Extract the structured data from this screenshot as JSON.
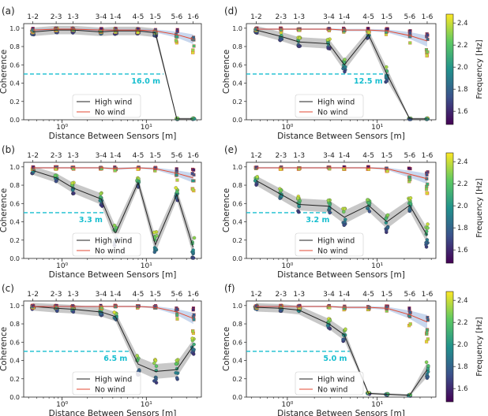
{
  "figure": {
    "xlabel": "Distance Between Sensors [m]",
    "ylabel": "Coherence",
    "colorbar_label": "Frequency [Hz]",
    "colorbar_ticks": [
      "2.4",
      "2.2",
      "2.0",
      "1.8",
      "1.6"
    ],
    "colormap": [
      "#440154",
      "#3b528b",
      "#21918c",
      "#5ec962",
      "#fde725"
    ],
    "high_wind_color": "#555555",
    "no_wind_color": "#e34a33",
    "threshold_color": "#17becf",
    "legend": [
      "High wind",
      "No wind"
    ],
    "x_tick_labels": [
      "10⁰",
      "10¹"
    ],
    "x_ticks": [
      1,
      10
    ],
    "y_ticks": [
      0.0,
      0.2,
      0.4,
      0.6,
      0.8,
      1.0
    ],
    "y_tick_labels": [
      "0.0",
      "0.2",
      "0.4",
      "0.6",
      "0.8",
      "1.0"
    ],
    "threshold_y": 0.5,
    "pair_labels": [
      "1-2",
      "2-3",
      "1-3",
      "3-4",
      "1-4",
      "4-5",
      "1-5",
      "5-6",
      "1-6"
    ],
    "pair_distances": [
      0.45,
      0.85,
      1.35,
      2.9,
      4.3,
      8.0,
      12.8,
      23.0,
      36.0
    ]
  },
  "chart_data": [
    {
      "type": "line",
      "panel": "(a)",
      "ylim": [
        0,
        1.05
      ],
      "xlim": [
        0.35,
        45
      ],
      "threshold_label": "16.0 m",
      "series": [
        {
          "name": "High wind",
          "values": [
            0.96,
            0.98,
            0.98,
            0.96,
            0.97,
            0.97,
            0.95,
            0.01,
            0.01
          ]
        },
        {
          "name": "No wind",
          "values": [
            0.98,
            0.99,
            0.99,
            0.98,
            0.98,
            0.98,
            0.97,
            0.93,
            0.88
          ]
        }
      ]
    },
    {
      "type": "line",
      "panel": "(b)",
      "ylim": [
        0,
        1.05
      ],
      "xlim": [
        0.35,
        45
      ],
      "threshold_label": "3.3 m",
      "series": [
        {
          "name": "High wind",
          "values": [
            0.96,
            0.88,
            0.77,
            0.65,
            0.27,
            0.83,
            0.15,
            0.7,
            0.12
          ]
        },
        {
          "name": "No wind",
          "values": [
            0.99,
            0.99,
            0.99,
            0.99,
            0.98,
            0.99,
            0.98,
            0.93,
            0.88
          ]
        }
      ]
    },
    {
      "type": "line",
      "panel": "(c)",
      "ylim": [
        0,
        1.05
      ],
      "xlim": [
        0.35,
        45
      ],
      "threshold_label": "6.5 m",
      "series": [
        {
          "name": "High wind",
          "values": [
            0.99,
            0.97,
            0.96,
            0.93,
            0.88,
            0.36,
            0.28,
            0.3,
            0.56
          ]
        },
        {
          "name": "No wind",
          "values": [
            0.99,
            0.99,
            0.99,
            0.99,
            0.99,
            0.99,
            0.98,
            0.93,
            0.86
          ]
        }
      ]
    },
    {
      "type": "line",
      "panel": "(d)",
      "ylim": [
        0,
        1.05
      ],
      "xlim": [
        0.35,
        45
      ],
      "threshold_label": "12.5 m",
      "series": [
        {
          "name": "High wind",
          "values": [
            0.98,
            0.91,
            0.85,
            0.83,
            0.6,
            0.93,
            0.5,
            0.01,
            0.01
          ]
        },
        {
          "name": "No wind",
          "values": [
            0.99,
            0.99,
            0.99,
            0.99,
            0.98,
            0.98,
            0.97,
            0.92,
            0.86
          ]
        }
      ]
    },
    {
      "type": "line",
      "panel": "(e)",
      "ylim": [
        0,
        1.05
      ],
      "xlim": [
        0.35,
        45
      ],
      "threshold_label": "3.2 m",
      "series": [
        {
          "name": "High wind",
          "values": [
            0.85,
            0.7,
            0.59,
            0.57,
            0.45,
            0.58,
            0.4,
            0.58,
            0.25
          ]
        },
        {
          "name": "No wind",
          "values": [
            0.99,
            0.99,
            0.99,
            0.99,
            0.99,
            0.99,
            0.98,
            0.92,
            0.87
          ]
        }
      ]
    },
    {
      "type": "line",
      "panel": "(f)",
      "ylim": [
        0,
        1.05
      ],
      "xlim": [
        0.35,
        45
      ],
      "threshold_label": "5.0 m",
      "series": [
        {
          "name": "High wind",
          "values": [
            0.98,
            0.97,
            0.95,
            0.8,
            0.68,
            0.04,
            0.03,
            0.02,
            0.3
          ]
        },
        {
          "name": "No wind",
          "values": [
            0.99,
            0.99,
            0.99,
            0.99,
            0.98,
            0.98,
            0.97,
            0.9,
            0.82
          ]
        }
      ]
    }
  ]
}
